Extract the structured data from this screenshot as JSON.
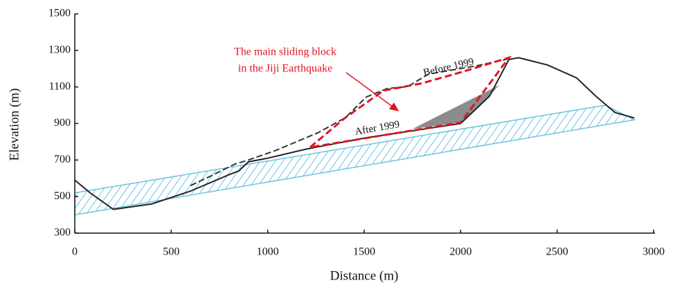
{
  "chart_data": {
    "type": "line",
    "xlabel": "Distance (m)",
    "ylabel": "Elevation (m)",
    "xlim": [
      0,
      3000
    ],
    "ylim": [
      300,
      1500
    ],
    "xticks": [
      0,
      500,
      1000,
      1500,
      2000,
      2500,
      3000
    ],
    "yticks": [
      300,
      500,
      700,
      900,
      1100,
      1300,
      1500
    ],
    "annotations": [
      "The main sliding block",
      "in the Jiji Earthquake"
    ],
    "bedrock": {
      "x": [
        0,
        2750,
        2900,
        0
      ],
      "y": [
        520,
        1000,
        920,
        400
      ],
      "color": "#6cc3e0"
    },
    "deposit": {
      "x": [
        1750,
        2000,
        2130,
        2200
      ],
      "y": [
        870,
        905,
        1030,
        1110
      ],
      "color": "#777777"
    },
    "block": {
      "x": [
        1220,
        1400,
        1600,
        1800,
        2000,
        2250,
        2000,
        1220
      ],
      "y": [
        770,
        930,
        1080,
        1120,
        1180,
        1260,
        905,
        770
      ],
      "color": "#e0141e"
    },
    "series": [
      {
        "name": "Before 1999",
        "color": "#333333",
        "dashed": true,
        "x": [
          600,
          700,
          830,
          900,
          1045,
          1260,
          1403,
          1511,
          1618,
          1726,
          1833,
          2084,
          2250
        ],
        "values": [
          560,
          610,
          678,
          700,
          754,
          849,
          932,
          1045,
          1091,
          1102,
          1170,
          1216,
          1254
        ]
      },
      {
        "name": "After 1999",
        "color": "#222222",
        "dashed": false,
        "x": [
          0,
          80,
          200,
          400,
          600,
          800,
          850,
          900,
          1000,
          1200,
          1500,
          2000,
          2150,
          2250,
          2300,
          2450,
          2600,
          2700,
          2800,
          2900
        ],
        "values": [
          590,
          520,
          430,
          460,
          530,
          620,
          640,
          690,
          710,
          760,
          820,
          900,
          1050,
          1250,
          1260,
          1220,
          1150,
          1050,
          960,
          930
        ]
      }
    ]
  }
}
